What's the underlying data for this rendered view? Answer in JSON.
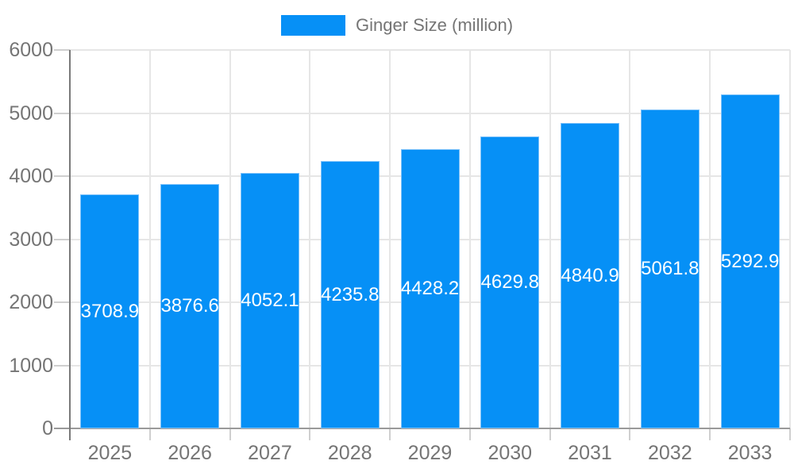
{
  "legend": {
    "label": "Ginger Size (million)"
  },
  "colors": {
    "bar": "#0690F6",
    "bar_border": "#7DC2FA",
    "axis_y": "#7A7A7A",
    "axis_x": "#9A9A9A",
    "grid": "#E6E6E6",
    "tick_stub": "#CFCFCF",
    "axis_label": "#757575",
    "value_label": "#FFFFFF",
    "background": "#FFFFFF"
  },
  "chart_data": {
    "type": "bar",
    "title": "",
    "xlabel": "",
    "ylabel": "",
    "series_name": "Ginger Size (million)",
    "categories": [
      "2025",
      "2026",
      "2027",
      "2028",
      "2029",
      "2030",
      "2031",
      "2032",
      "2033"
    ],
    "values": [
      3708.9,
      3876.6,
      4052.1,
      4235.8,
      4428.2,
      4629.8,
      4840.9,
      5061.8,
      5292.9
    ],
    "value_labels_shown": [
      "3708.9",
      "3876.6",
      "4052.1",
      "4235.8",
      "4428.2",
      "4629.8",
      "4840.9",
      "5061.8",
      "5292.9"
    ],
    "ylim": [
      0,
      6000
    ],
    "yticks": [
      0,
      1000,
      2000,
      3000,
      4000,
      5000,
      6000
    ],
    "grid": "both",
    "legend_position": "top-center",
    "value_label_position": "inside-middle"
  }
}
